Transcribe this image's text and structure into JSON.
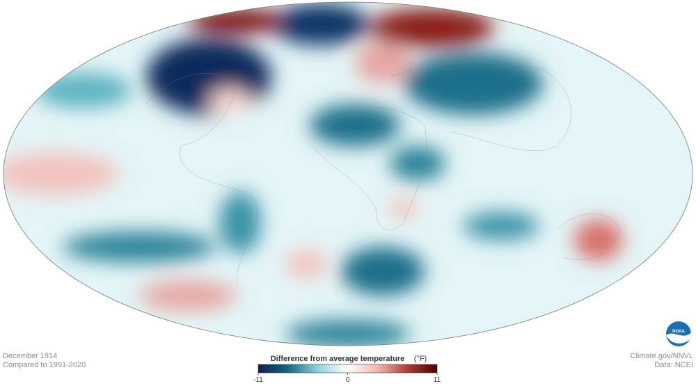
{
  "caption": {
    "date": "December 1914",
    "baseline": "Compared to 1991-2020"
  },
  "legend": {
    "title": "Difference from average temperature",
    "unit": "(°F)",
    "min": -11,
    "max": 11,
    "ticks": [
      -11,
      0,
      11
    ],
    "colors": [
      "#0d1f4f",
      "#0f6b85",
      "#8fd3dc",
      "#ffffff",
      "#f2b7b2",
      "#b23a36",
      "#4a0000"
    ]
  },
  "credits": {
    "source": "Climate.gov/NNVL",
    "data": "Data: NCEI"
  }
}
